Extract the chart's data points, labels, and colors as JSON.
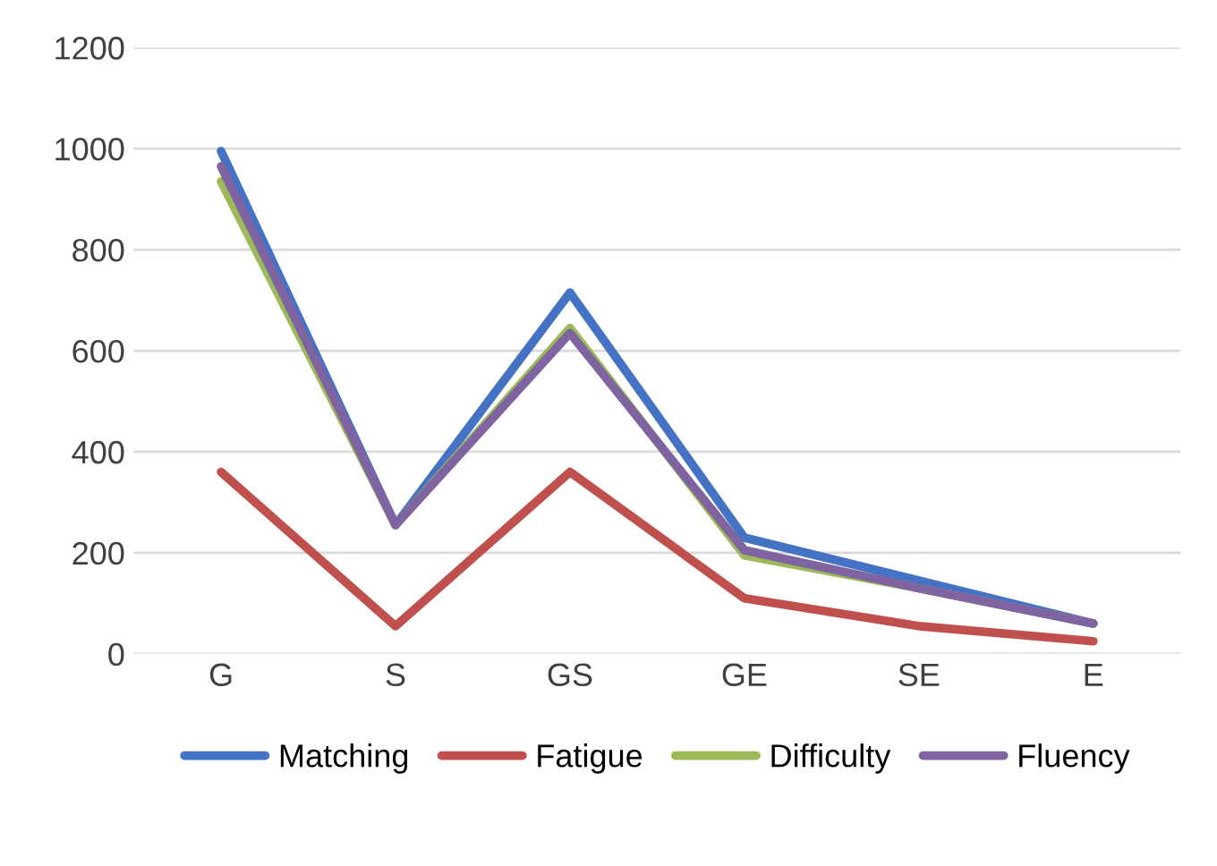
{
  "chart_data": {
    "type": "line",
    "categories": [
      "G",
      "S",
      "GS",
      "GE",
      "SE",
      "E"
    ],
    "series": [
      {
        "name": "Matching",
        "color": "#4472c4",
        "values": [
          995,
          255,
          715,
          230,
          145,
          60
        ]
      },
      {
        "name": "Fatigue",
        "color": "#c0504d",
        "values": [
          360,
          55,
          360,
          110,
          55,
          25
        ]
      },
      {
        "name": "Difficulty",
        "color": "#9bbb59",
        "values": [
          935,
          255,
          645,
          195,
          130,
          60
        ]
      },
      {
        "name": "Fluency",
        "color": "#8064a2",
        "values": [
          965,
          255,
          635,
          205,
          130,
          60
        ]
      }
    ],
    "ylim": [
      0,
      1200
    ],
    "yticks": [
      0,
      200,
      400,
      600,
      800,
      1000,
      1200
    ],
    "grid": "y",
    "legend": "bottom",
    "marker": "none",
    "line_style": "solid"
  }
}
